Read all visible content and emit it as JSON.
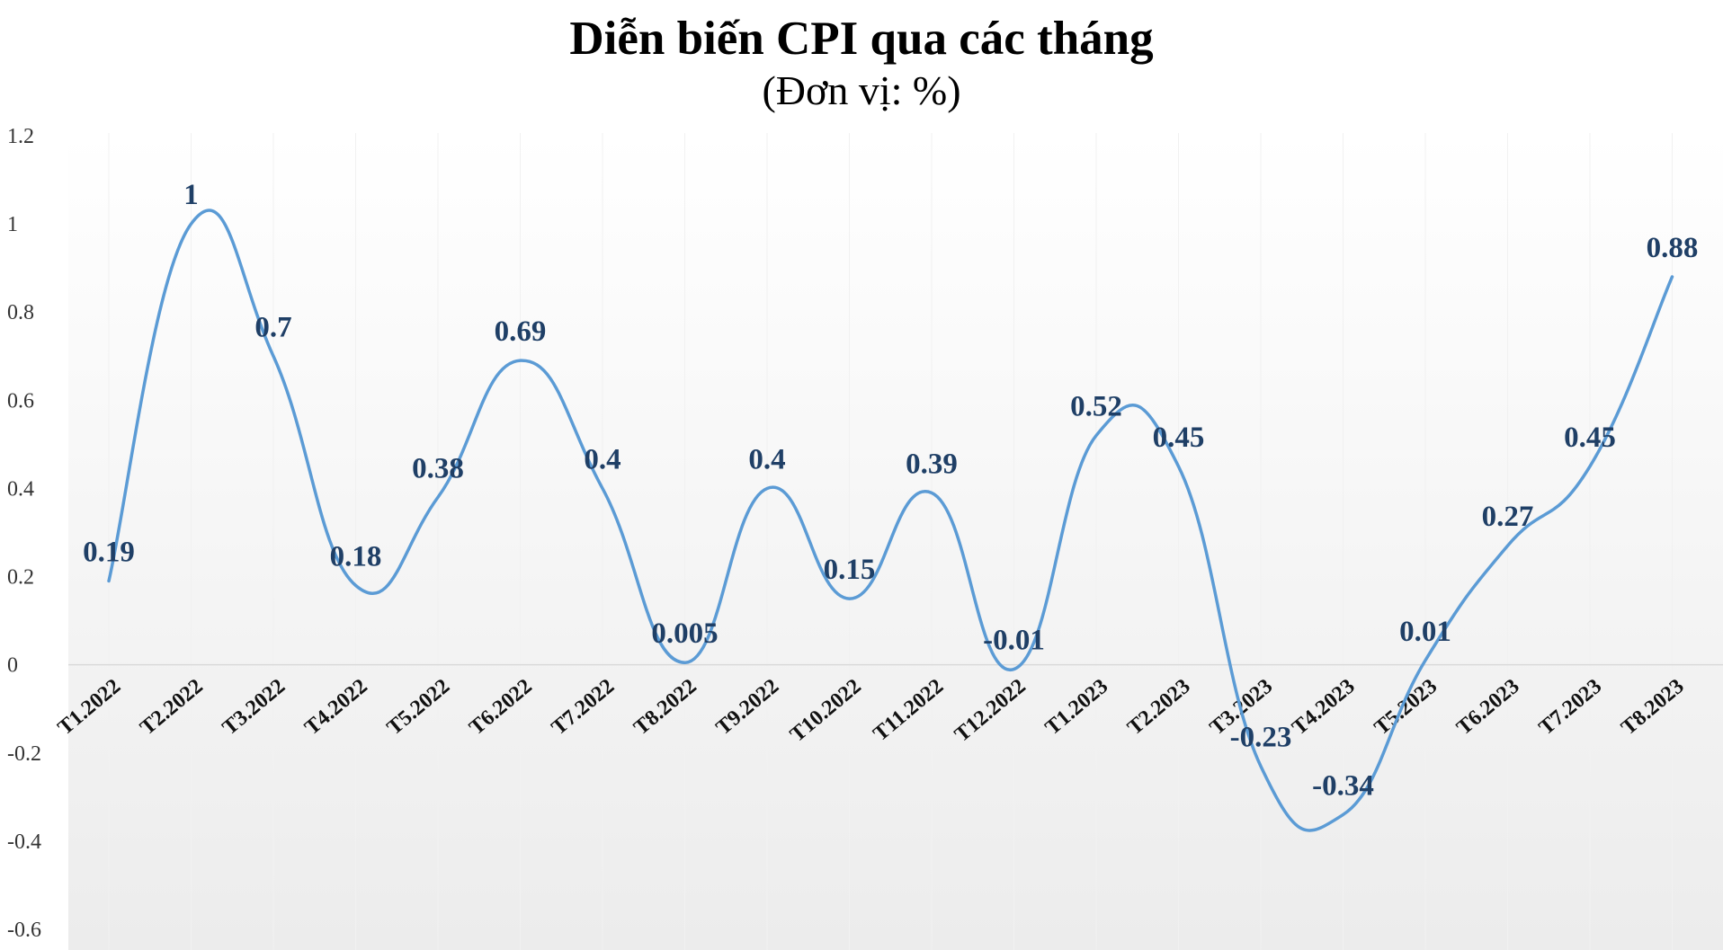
{
  "chart_data": {
    "type": "line",
    "title": "Diễn biến CPI qua các tháng",
    "subtitle": "(Đơn vị: %)",
    "categories": [
      "T1.2022",
      "T2.2022",
      "T3.2022",
      "T4.2022",
      "T5.2022",
      "T6.2022",
      "T7.2022",
      "T8.2022",
      "T9.2022",
      "T10.2022",
      "T11.2022",
      "T12.2022",
      "T1.2023",
      "T2.2023",
      "T3.2023",
      "T4.2023",
      "T5.2023",
      "T6.2023",
      "T7.2023",
      "T8.2023"
    ],
    "values": [
      0.19,
      1,
      0.7,
      0.18,
      0.38,
      0.69,
      0.4,
      0.005,
      0.4,
      0.15,
      0.39,
      -0.01,
      0.52,
      0.45,
      -0.23,
      -0.34,
      0.01,
      0.27,
      0.45,
      0.88
    ],
    "data_labels": [
      "0.19",
      "1",
      "0.7",
      "0.18",
      "0.38",
      "0.69",
      "0.4",
      "0.005",
      "0.4",
      "0.15",
      "0.39",
      "-0.01",
      "0.52",
      "0.45",
      "-0.23",
      "-0.34",
      "0.01",
      "0.27",
      "0.45",
      "0.88"
    ],
    "yticks": [
      "1.2",
      "1",
      "0.8",
      "0.6",
      "0.4",
      "0.2",
      "0",
      "-0.2",
      "-0.4",
      "-0.6"
    ],
    "ylim": [
      -0.6,
      1.2
    ],
    "grid": false,
    "smooth": true,
    "legend": "none",
    "line_color": "#5b9bd5",
    "label_color": "#1f3f66",
    "background_gradient": [
      "#ffffff",
      "#ececec"
    ]
  }
}
